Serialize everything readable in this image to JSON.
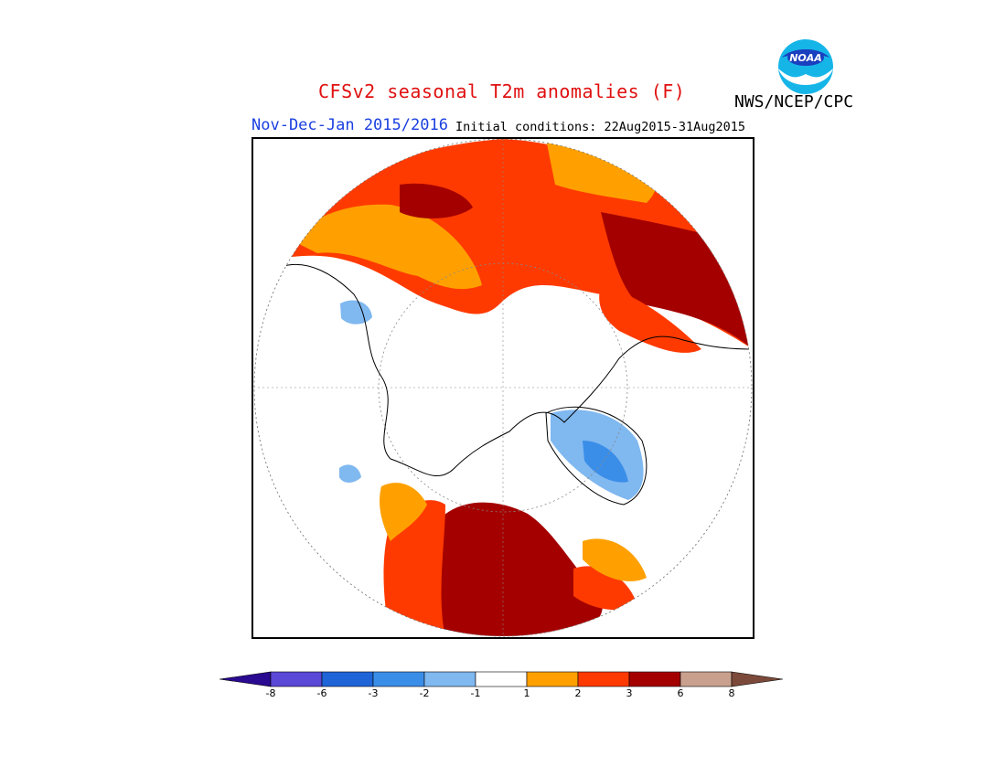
{
  "header": {
    "title": "CFSv2 seasonal T2m anomalies (F)",
    "agency": "NWS/NCEP/CPC",
    "season": "Nov-Dec-Jan 2015/2016",
    "initial_conditions": "Initial conditions: 22Aug2015-31Aug2015",
    "logo_text": "NOAA"
  },
  "map": {
    "projection": "north-polar-stereographic",
    "region": "Northern Hemisphere"
  },
  "colorbar": {
    "tick_labels": [
      "-8",
      "-6",
      "-3",
      "-2",
      "-1",
      "1",
      "2",
      "3",
      "6",
      "8"
    ],
    "colors": [
      "#3a1cb5",
      "#5a48d6",
      "#1f65d8",
      "#3b8ee8",
      "#80b8f0",
      "#ffffff",
      "#ffa000",
      "#ff3a00",
      "#a40000",
      "#c9a08e",
      "#7c4a3a"
    ],
    "under_color": "#2a0a90",
    "over_color": "#7c4a3a"
  }
}
